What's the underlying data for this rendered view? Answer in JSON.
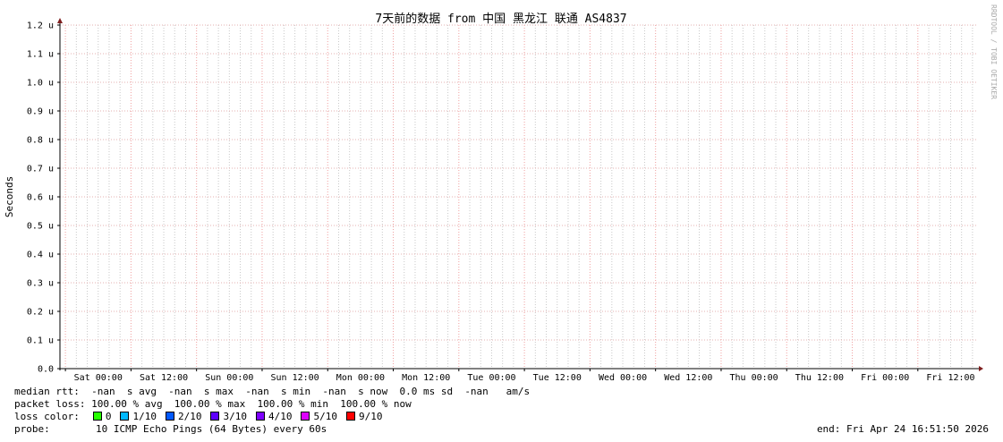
{
  "chart_data": {
    "type": "line",
    "title": "7天前的数据 from 中国 黑龙江 联通 AS4837",
    "ylabel": "Seconds",
    "xlabel": "",
    "ylim": [
      0,
      1.2e-06
    ],
    "yticks": [
      "0.0",
      "0.1 u",
      "0.2 u",
      "0.3 u",
      "0.4 u",
      "0.5 u",
      "0.6 u",
      "0.7 u",
      "0.8 u",
      "0.9 u",
      "1.0 u",
      "1.1 u",
      "1.2 u"
    ],
    "xticks": [
      "Sat 00:00",
      "Sat 12:00",
      "Sun 00:00",
      "Sun 12:00",
      "Mon 00:00",
      "Mon 12:00",
      "Tue 00:00",
      "Tue 12:00",
      "Wed 00:00",
      "Wed 12:00",
      "Thu 00:00",
      "Thu 12:00",
      "Fri 00:00",
      "Fri 12:00"
    ],
    "grid": true,
    "series": [],
    "watermark": "RRDTOOL / TOBI OETIKER",
    "colors": {
      "major_grid": "#f0a0a0",
      "minor_grid": "#c8c8c8",
      "axis": "#000000",
      "arrow": "#7f1f1f"
    }
  },
  "legend": {
    "median_rtt": "median rtt:  -nan  s avg  -nan  s max  -nan  s min  -nan  s now  0.0 ms sd  -nan   am/s",
    "packet_loss": "packet loss: 100.00 % avg  100.00 % max  100.00 % min  100.00 % now",
    "loss_color_label": "loss color:",
    "loss_colors": [
      {
        "label": "0",
        "color": "#26ff00"
      },
      {
        "label": "1/10",
        "color": "#00b8ff"
      },
      {
        "label": "2/10",
        "color": "#0059ff"
      },
      {
        "label": "3/10",
        "color": "#5e00ff"
      },
      {
        "label": "4/10",
        "color": "#7e00ff"
      },
      {
        "label": "5/10",
        "color": "#dd00ff"
      },
      {
        "label": "9/10",
        "color": "#ff0000"
      }
    ],
    "probe_label": "probe:",
    "probe": "10 ICMP Echo Pings (64 Bytes) every 60s",
    "end": "end: Fri Apr 24 16:51:50 2026"
  }
}
